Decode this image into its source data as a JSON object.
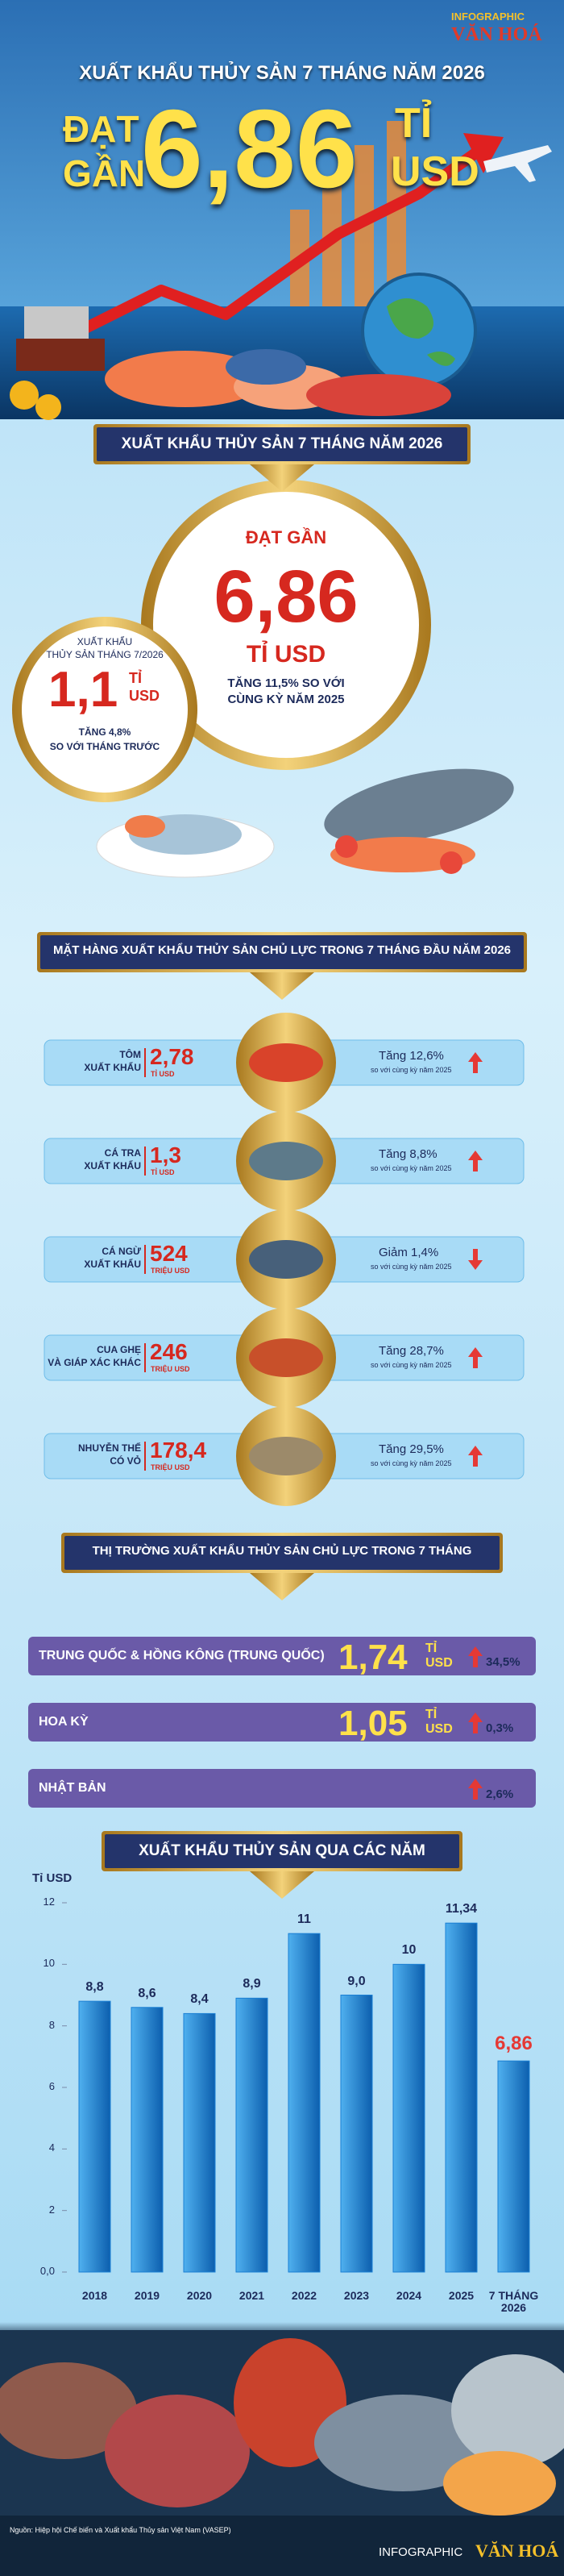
{
  "header": {
    "logo_top": "INFOGRAPHIC",
    "logo_bottom": "VĂN HOÁ",
    "title": "XUẤT KHẨU THỦY SẢN 7 THÁNG NĂM 2026",
    "lead_top": "ĐẠT",
    "lead_bottom": "GẦN",
    "value": "6,86",
    "unit_top": "TỈ",
    "unit_bottom": "USD"
  },
  "overview": {
    "title": "XUẤT KHẨU THỦY SẢN 7 THÁNG NĂM 2026",
    "main": {
      "label": "ĐẠT GẦN",
      "value": "6,86",
      "unit": "TỈ USD",
      "note_line1": "TĂNG 11,5% SO VỚI",
      "note_line2": "CÙNG KỲ NĂM 2025"
    },
    "month": {
      "label_line1": "XUẤT KHẨU",
      "label_line2": "THỦY SẢN THÁNG 7/2026",
      "value": "1,1",
      "unit_top": "TỈ",
      "unit_bottom": "USD",
      "note_line1": "TĂNG 4,8%",
      "note_line2": "SO VỚI THÁNG TRƯỚC"
    }
  },
  "products": {
    "title": "MẶT HÀNG XUẤT KHẨU THỦY SẢN CHỦ LỰC TRONG 7 THÁNG ĐẦU NĂM 2026",
    "items": [
      {
        "name_line1": "TÔM",
        "name_line2": "XUẤT KHẨU",
        "value": "2,78",
        "unit": "TỈ USD",
        "change": "Tăng 12,6%",
        "note": "so với cùng kỳ năm 2025",
        "direction": "up"
      },
      {
        "name_line1": "CÁ TRA",
        "name_line2": "XUẤT KHẨU",
        "value": "1,3",
        "unit": "TỈ USD",
        "change": "Tăng 8,8%",
        "note": "so với cùng kỳ năm 2025",
        "direction": "up"
      },
      {
        "name_line1": "CÁ NGỪ",
        "name_line2": "XUẤT KHẨU",
        "value": "524",
        "unit": "TRIỆU USD",
        "change": "Giảm 1,4%",
        "note": "so với cùng kỳ năm 2025",
        "direction": "down"
      },
      {
        "name_line1": "CUA GHẸ",
        "name_line2": "VÀ GIÁP XÁC KHÁC",
        "value": "246",
        "unit": "TRIỆU USD",
        "change": "Tăng 28,7%",
        "note": "so với cùng kỳ năm 2025",
        "direction": "up"
      },
      {
        "name_line1": "NHUYỄN THỂ",
        "name_line2": "CÓ VỎ",
        "value": "178,4",
        "unit": "TRIỆU USD",
        "change": "Tăng 29,5%",
        "note": "so với cùng kỳ năm 2025",
        "direction": "up"
      }
    ]
  },
  "markets": {
    "title": "THỊ TRƯỜNG XUẤT KHẨU THỦY SẢN CHỦ LỰC TRONG 7 THÁNG",
    "items": [
      {
        "name": "TRUNG QUỐC & HỒNG KÔNG (TRUNG QUỐC)",
        "value": "1,74",
        "unit_top": "TỈ",
        "unit_bottom": "USD",
        "change": "34,5%"
      },
      {
        "name": "HOA KỲ",
        "value": "1,05",
        "unit_top": "TỈ",
        "unit_bottom": "USD",
        "change": "0,3%"
      },
      {
        "name": "NHẬT BẢN",
        "change": "2,6%"
      }
    ]
  },
  "chart_data": {
    "type": "bar",
    "title": "XUẤT KHẨU THỦY SẢN QUA CÁC NĂM",
    "y_label": "Tỉ USD",
    "categories": [
      "2018",
      "2019",
      "2020",
      "2021",
      "2022",
      "2023",
      "2024",
      "2025",
      "7 THÁNG 2026"
    ],
    "values": [
      8.8,
      8.6,
      8.4,
      8.9,
      11,
      9.0,
      10,
      11.34,
      6.86
    ],
    "value_labels": [
      "8,8",
      "8,6",
      "8,4",
      "8,9",
      "11",
      "9,0",
      "10",
      "11,34",
      "6,86"
    ],
    "value_label_colors": [
      "#1c2a5a",
      "#1c2a5a",
      "#1c2a5a",
      "#1c2a5a",
      "#1c2a5a",
      "#1c2a5a",
      "#1c2a5a",
      "#1c2a5a",
      "#e53935"
    ],
    "color": "#1a7fd4",
    "ylim": [
      0,
      12
    ],
    "yticks": [
      {
        "value": 0,
        "label": "0,0"
      },
      2,
      4,
      6,
      8,
      10,
      12
    ],
    "grid": false
  },
  "footer": {
    "source": "Nguồn: Hiệp hội Chế biến và Xuất khẩu Thủy sản Việt Nam (VASEP)",
    "logo_left": "INFOGRAPHIC",
    "logo_right": "VĂN HOÁ"
  }
}
